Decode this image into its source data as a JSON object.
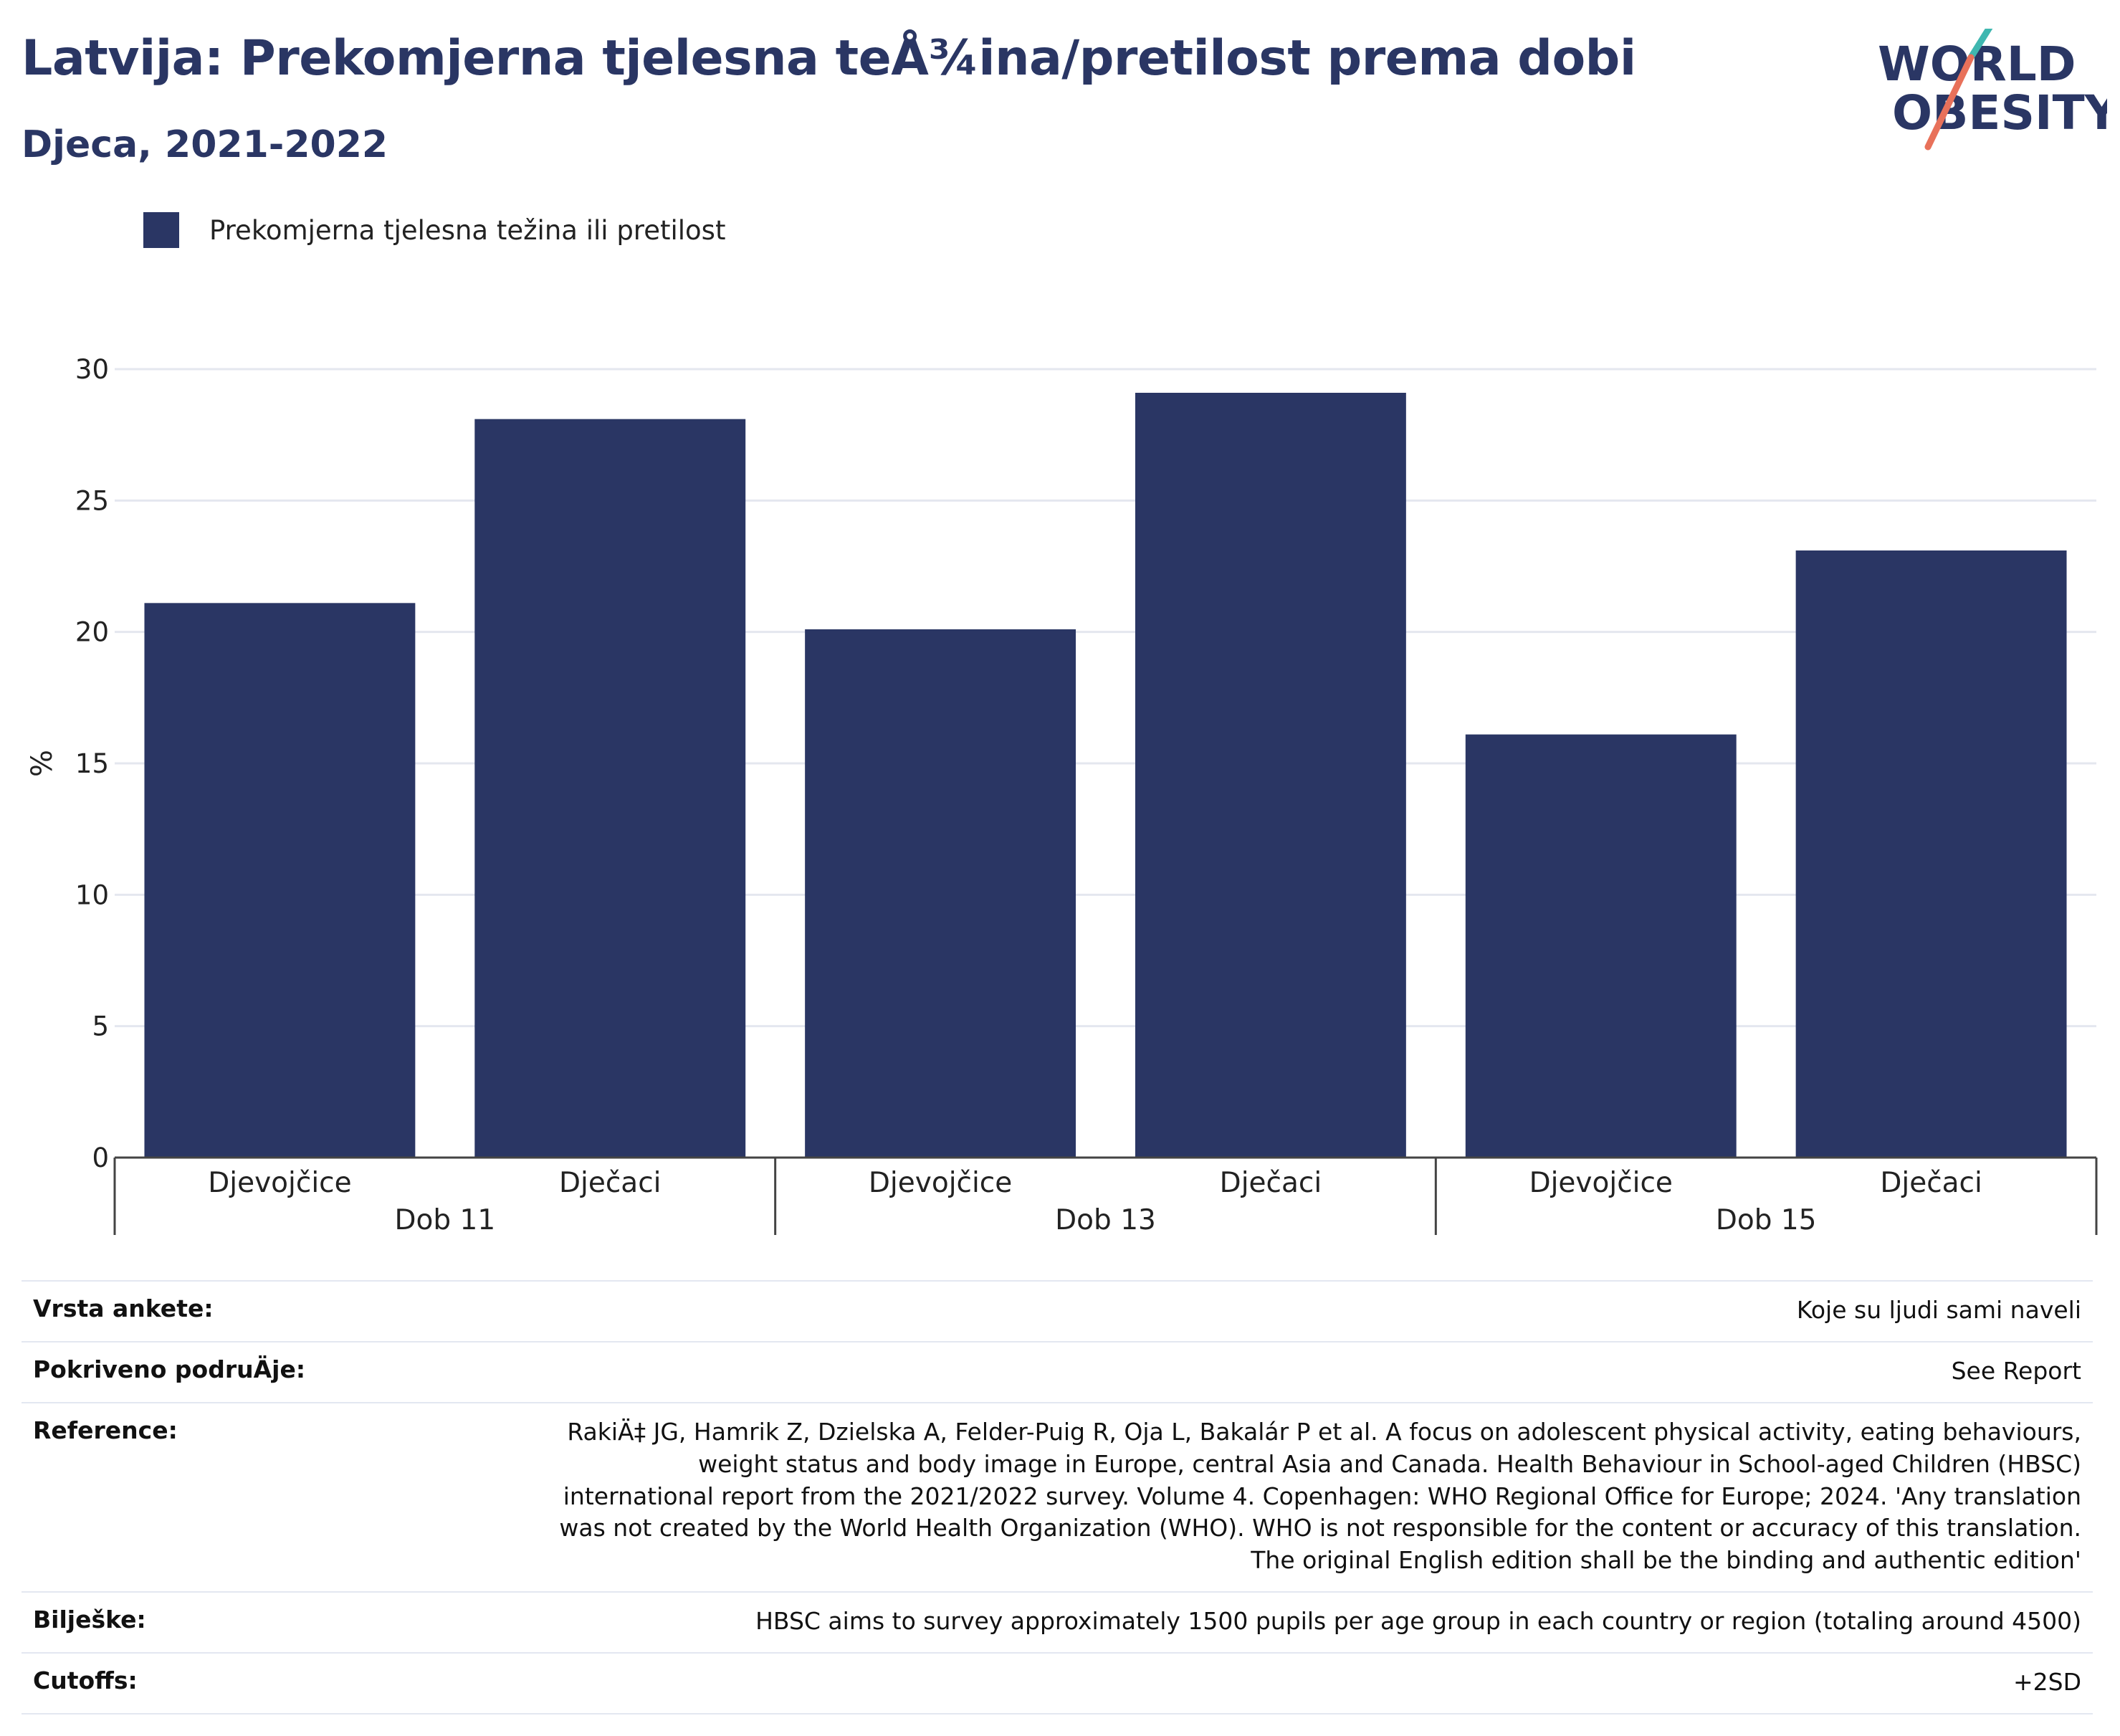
{
  "header": {
    "title": "Latvija: Prekomjerna tjelesna teÅ¾ina/pretilost prema dobi",
    "subtitle": "Djeca, 2021-2022"
  },
  "logo": {
    "line1": "WORLD",
    "line2": "OBESITY",
    "color_text": "#2a3664",
    "color_accent_teal": "#3fb7b0",
    "color_accent_red": "#e8715a"
  },
  "legend": {
    "items": [
      {
        "label": "Prekomjerna tjelesna težina ili pretilost",
        "color": "#2a3664"
      }
    ]
  },
  "chart_data": {
    "type": "bar",
    "groups": [
      "Dob 11",
      "Dob 13",
      "Dob 15"
    ],
    "categories": [
      "Djevojčice",
      "Dječaci",
      "Djevojčice",
      "Dječaci",
      "Djevojčice",
      "Dječaci"
    ],
    "group_of_category": [
      0,
      0,
      1,
      1,
      2,
      2
    ],
    "series": [
      {
        "name": "Prekomjerna tjelesna težina ili pretilost",
        "values": [
          21.1,
          28.1,
          20.1,
          29.1,
          16.1,
          23.1
        ],
        "color": "#2a3664"
      }
    ],
    "ylabel": "%",
    "ylim": [
      0,
      30
    ],
    "yticks": [
      "0",
      "5",
      "10",
      "15",
      "20",
      "25",
      "30"
    ],
    "grid": true,
    "legend_position": "top-left"
  },
  "info": {
    "rows": [
      {
        "key": "Vrsta ankete:",
        "value": "Koje su ljudi sami naveli"
      },
      {
        "key": "Pokriveno podruÄje:",
        "value": "See Report"
      },
      {
        "key": "Reference:",
        "value": "RakiÄ‡ JG, Hamrik Z, Dzielska A, Felder-Puig R, Oja L, Bakalár P et al. A focus on adolescent physical activity, eating behaviours, weight status and body image in Europe, central Asia and Canada. Health Behaviour in School-aged Children (HBSC) international report from the 2021/2022 survey. Volume 4. Copenhagen: WHO Regional Office for Europe; 2024. 'Any translation was not created by the World Health Organization (WHO). WHO is not responsible for the content or accuracy of this translation. The original English edition shall be the binding and authentic edition'"
      },
      {
        "key": "Bilješke:",
        "value": "HBSC aims to survey approximately 1500 pupils per age group in each country or region (totaling around 4500)"
      },
      {
        "key": "Cutoffs:",
        "value": "+2SD"
      }
    ]
  }
}
